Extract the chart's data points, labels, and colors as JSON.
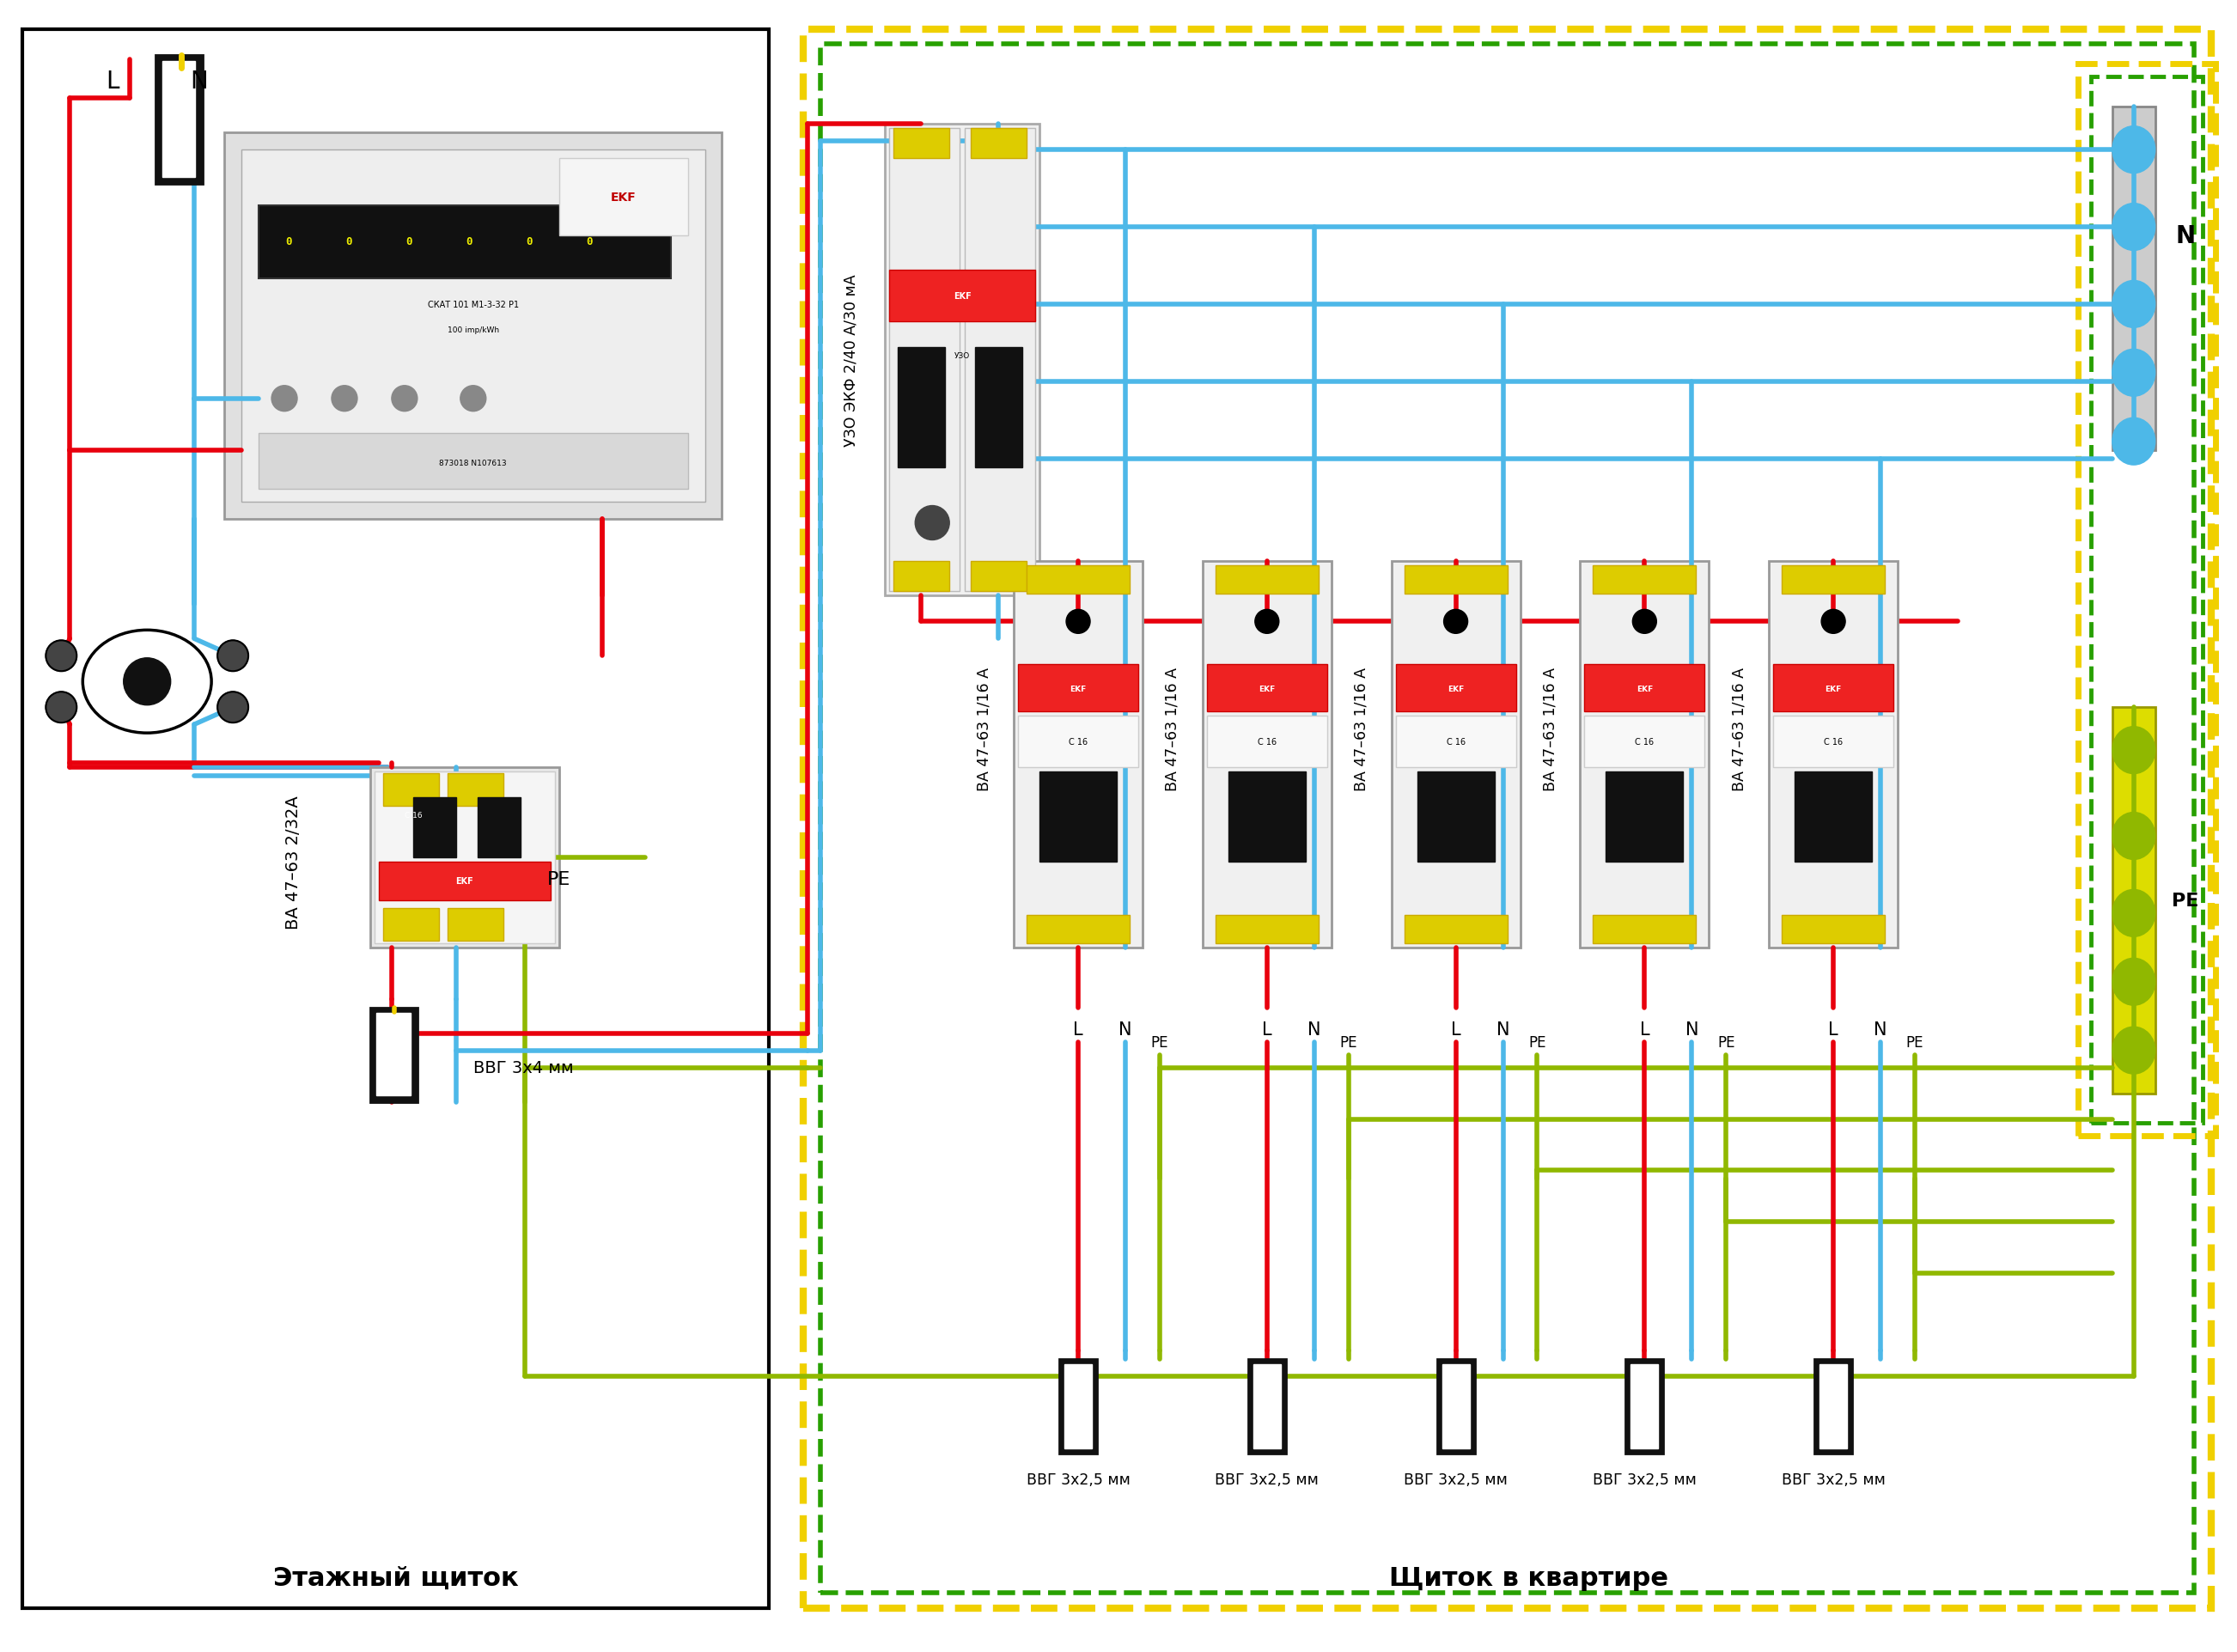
{
  "bg": "#ffffff",
  "red": "#e8000d",
  "blue": "#4db8e8",
  "yg1": "#f0d000",
  "yg2": "#28a000",
  "black": "#111111",
  "lw_wire": 4.0,
  "lw_border": 4.0,
  "left_label": "Этажный щиток",
  "right_label": "Щиток в квартире",
  "cb_main_label": "ВА 47–63 2/32А",
  "uzo_label": "УЗО ЭКФ 2/40 А/30 мА",
  "cb_branch_label": "ВА 47–63 1/16 А",
  "cable_in_label": "ВВГ 3х4 мм",
  "branch_labels": [
    "ВВГ 3х2,5 мм",
    "ВВГ 3х2,5 мм",
    "ВВГ 3х2,5 мм",
    "ВВГ 3х2,5 мм",
    "ВВГ 3х2,5 мм"
  ],
  "n_branches": 5
}
